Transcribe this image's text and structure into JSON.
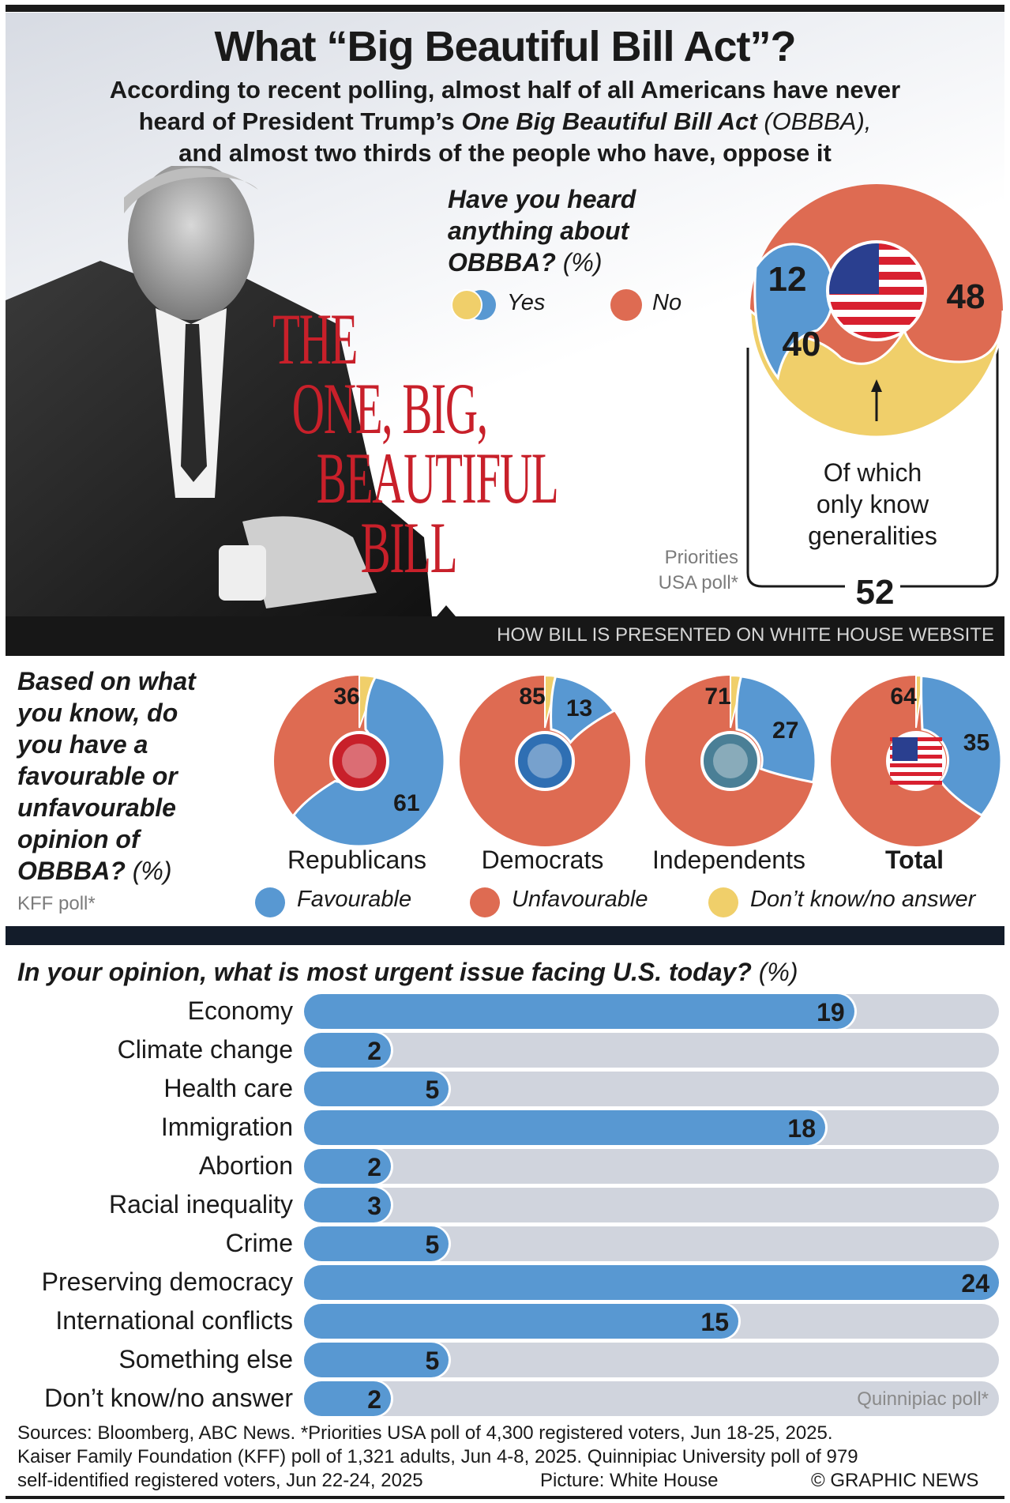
{
  "header": {
    "title": "What “Big Beautiful Bill Act”?",
    "subtitle_line1": "According to recent polling, almost half of all Americans have never",
    "subtitle_line2_a": "heard of President Trump’s ",
    "subtitle_line2_b": "One Big Beautiful Bill Act",
    "subtitle_line2_c": " (OBBBA),",
    "subtitle_line3": "and almost two thirds of the people who have, oppose it"
  },
  "photo": {
    "headline_lines": [
      "THE",
      "ONE, BIG,",
      "BEAUTIFUL",
      "BILL"
    ],
    "caption": "HOW BILL IS PRESENTED ON WHITE HOUSE WEBSITE",
    "credit_icon": "trump-portrait"
  },
  "colors": {
    "favourable_yes": "#5898d2",
    "unfavourable_no": "#de6b52",
    "dont_know": "#f0cf6a",
    "track": "#d0d4dd",
    "headline_red": "#c8202a"
  },
  "heard": {
    "question": "Have you heard anything about OBBBA?",
    "unit": "(%)",
    "legend_yes": "Yes",
    "legend_no": "No",
    "source": [
      "Priorities",
      "USA poll*"
    ],
    "values": {
      "yes_detail": 12,
      "yes_generalities": 40,
      "no": 48,
      "yes_total": 52
    },
    "annotation": [
      "Of which",
      "only know",
      "generalities"
    ]
  },
  "opinion": {
    "question": "Based on what you know, do you have a favourable or unfavourable opinion of OBBBA?",
    "unit": "(%)",
    "source": "KFF poll*",
    "legend": [
      "Favourable",
      "Unfavourable",
      "Don’t know/no answer"
    ],
    "groups": [
      {
        "label": "Republicans",
        "favourable": 61,
        "unfavourable": 36,
        "icon": "elephant-icon"
      },
      {
        "label": "Democrats",
        "favourable": 13,
        "unfavourable": 85,
        "icon": "donkey-icon"
      },
      {
        "label": "Independents",
        "favourable": 27,
        "unfavourable": 71,
        "icon": "raised-hand-icon"
      },
      {
        "label": "Total",
        "favourable": 35,
        "unfavourable": 64,
        "icon": "us-flag-icon"
      }
    ]
  },
  "chart_data": {
    "type": "bar",
    "title": "In your opinion, what is most urgent issue facing U.S. today?",
    "unit": "(%)",
    "xlabel": "",
    "ylabel": "",
    "xlim": [
      0,
      24
    ],
    "categories": [
      "Economy",
      "Climate change",
      "Health care",
      "Immigration",
      "Abortion",
      "Racial inequality",
      "Crime",
      "Preserving democracy",
      "International conflicts",
      "Something else",
      "Don’t know/no answer"
    ],
    "values": [
      19,
      2,
      5,
      18,
      2,
      3,
      5,
      24,
      15,
      5,
      2
    ],
    "source": "Quinnipiac poll*"
  },
  "footer": {
    "line1": "Sources: Bloomberg, ABC News. *Priorities USA poll of 4,300 registered voters, Jun 18-25, 2025.",
    "line2": "Kaiser Family Foundation (KFF) poll of 1,321 adults, Jun 4-8, 2025. Quinnipiac University poll of 979",
    "line3": "self-identified registered voters, Jun 22-24, 2025",
    "picture_credit": "Picture: White House",
    "copyright": "© GRAPHIC NEWS"
  }
}
